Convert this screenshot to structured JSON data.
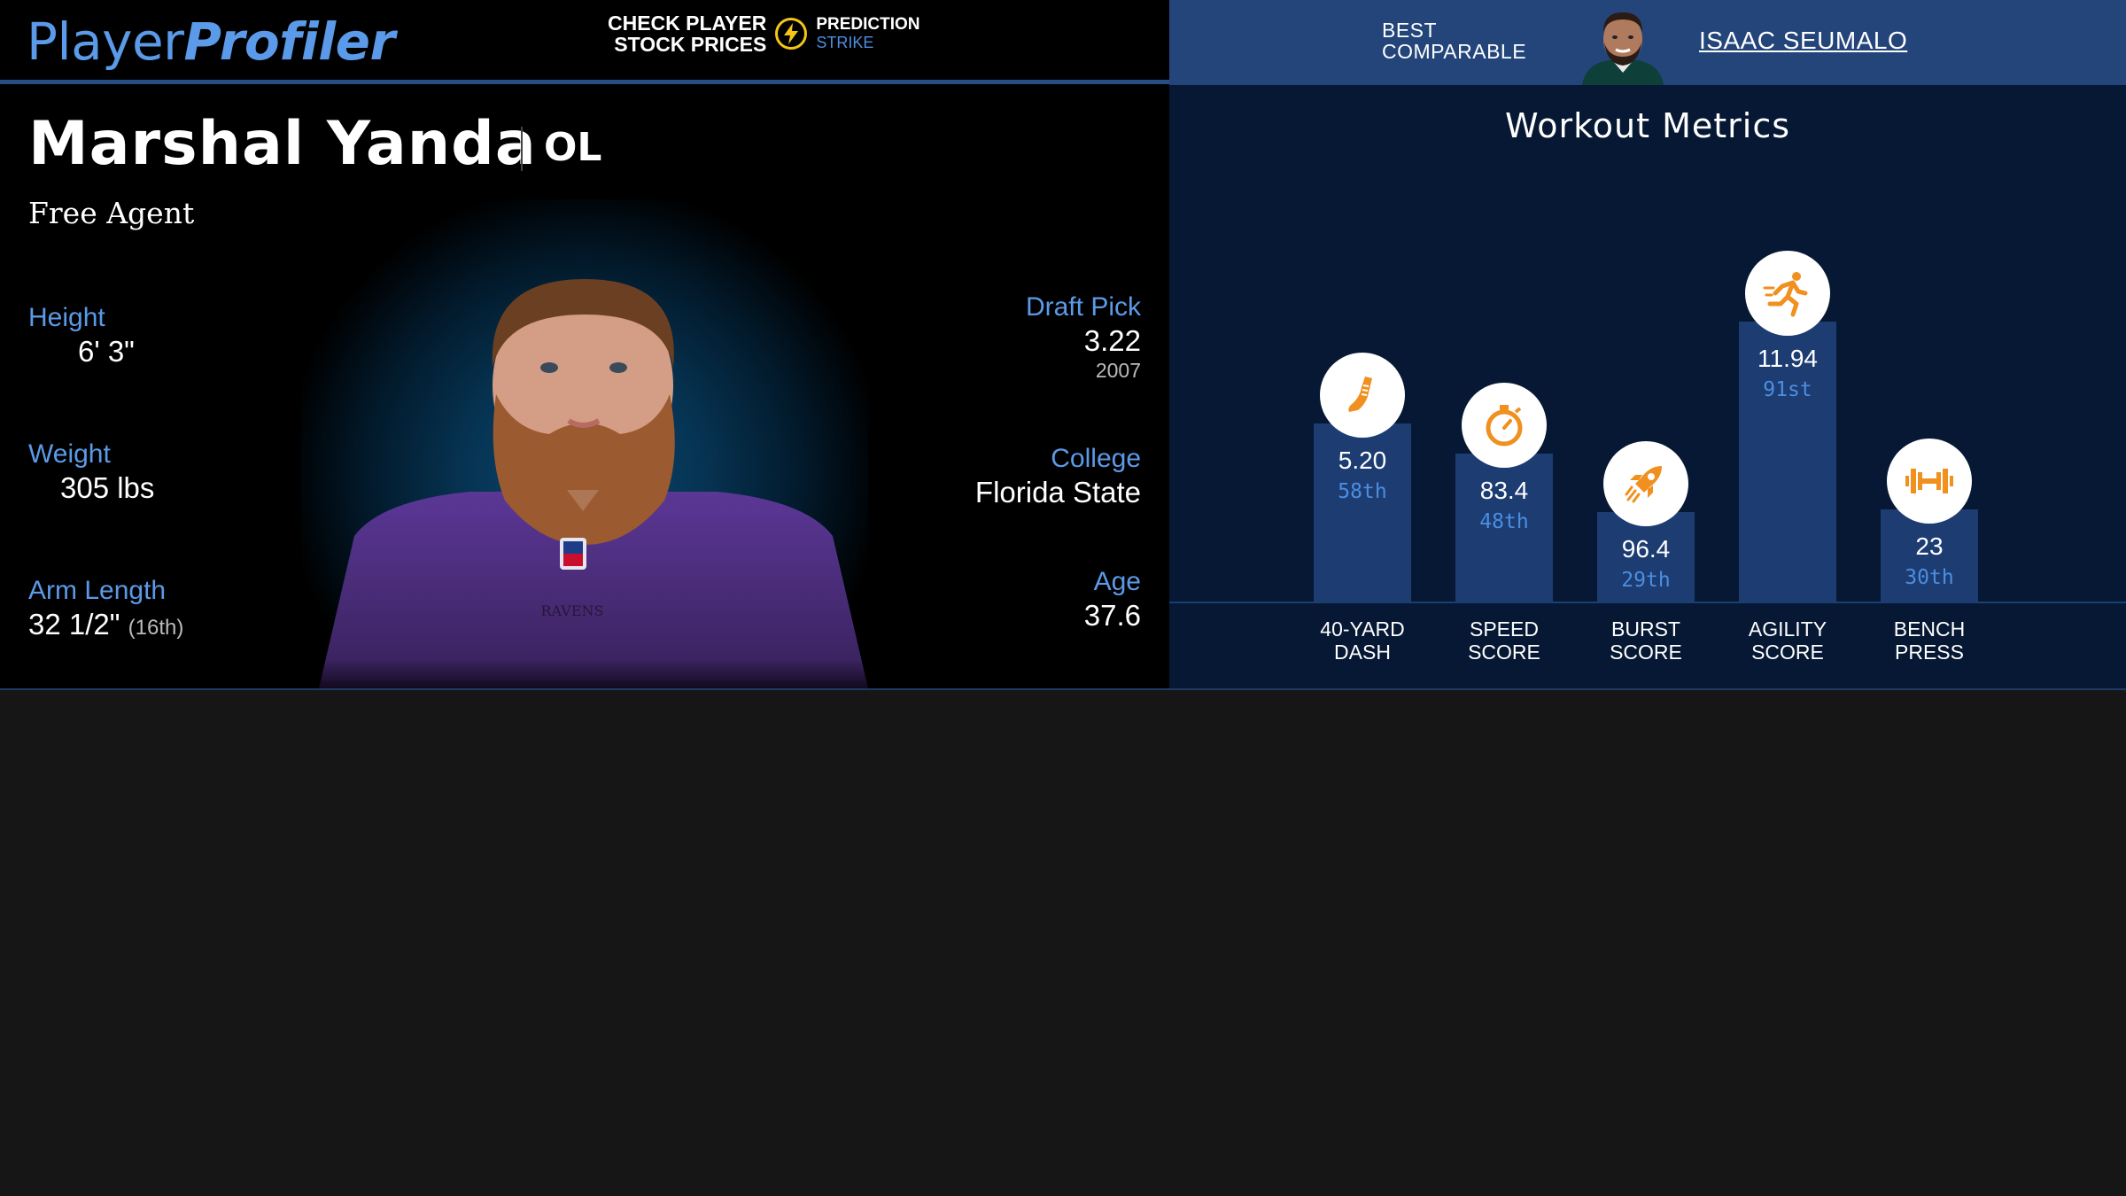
{
  "header": {
    "logo_part1": "Player",
    "logo_part2": "Profiler",
    "promo_line1": "CHECK PLAYER",
    "promo_line2": "STOCK PRICES",
    "promo_brand1": "PREDICTION",
    "promo_brand2": "STRIKE",
    "best_line1": "BEST",
    "best_line2": "COMPARABLE",
    "comparable_name": "ISAAC SEUMALO"
  },
  "player": {
    "name": "Marshal Yanda",
    "position": "OL",
    "status": "Free Agent",
    "height_label": "Height",
    "height": "6' 3\"",
    "weight_label": "Weight",
    "weight": "305 lbs",
    "arm_label": "Arm Length",
    "arm": "32 1/2\"",
    "arm_rank": "(16th)",
    "draft_label": "Draft Pick",
    "draft_pick": "3.22",
    "draft_year": "2007",
    "college_label": "College",
    "college": "Florida State",
    "age_label": "Age",
    "age": "37.6"
  },
  "workout": {
    "title": "Workout Metrics"
  },
  "chart_data": {
    "type": "bar",
    "title": "Workout Metrics",
    "categories": [
      "40-YARD DASH",
      "SPEED SCORE",
      "BURST SCORE",
      "AGILITY SCORE",
      "BENCH PRESS"
    ],
    "category_lines": [
      [
        "40-YARD",
        "DASH"
      ],
      [
        "SPEED",
        "SCORE"
      ],
      [
        "BURST",
        "SCORE"
      ],
      [
        "AGILITY",
        "SCORE"
      ],
      [
        "BENCH",
        "PRESS"
      ]
    ],
    "values": [
      "5.20",
      "83.4",
      "96.4",
      "11.94",
      "23"
    ],
    "percentile_labels": [
      "58th",
      "48th",
      "29th",
      "91st",
      "30th"
    ],
    "percentiles": [
      58,
      48,
      29,
      91,
      30
    ],
    "icons": [
      "shoe-icon",
      "stopwatch-icon",
      "rocket-icon",
      "runner-icon",
      "dumbbell-icon"
    ],
    "ylim": [
      0,
      100
    ],
    "bar_color": "#1c3c72",
    "icon_color": "#f0901e",
    "percentile_color": "#4c8ee0"
  }
}
